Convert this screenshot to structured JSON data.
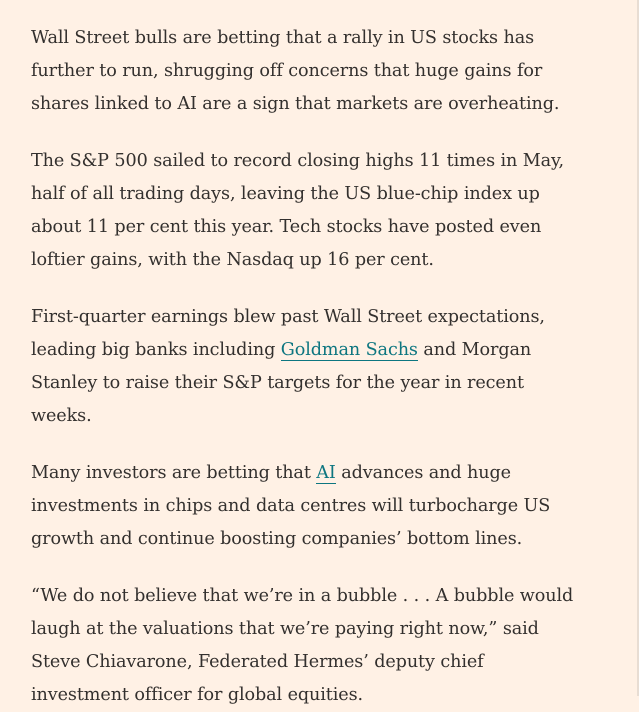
{
  "article": {
    "paragraphs": [
      {
        "lines": [
          "Wall Street bulls are betting that a rally in US stocks has",
          "further to run, shrugging off concerns that huge gains for",
          "shares linked to AI are a sign that markets are overheating."
        ]
      },
      {
        "lines": [
          "The S&P 500 sailed to record closing highs 11 times in May,",
          "half of all trading days, leaving the US blue-chip index up",
          "about 11 per cent this year. Tech stocks have posted even",
          "loftier gains, with the Nasdaq up 16 per cent."
        ]
      },
      {
        "line1": "First-quarter earnings blew past Wall Street expectations,",
        "line2_before": "leading big banks including ",
        "link_goldman": "Goldman Sachs",
        "line2_after": " and Morgan",
        "line3": "Stanley to raise their S&P targets for the year in recent",
        "line4": "weeks."
      },
      {
        "line1_before": "Many investors are betting that ",
        "link_ai": "AI",
        "line1_after": " advances and huge",
        "line2": "investments in chips and data centres will turbocharge US",
        "line3": "growth and continue boosting companies’ bottom lines."
      },
      {
        "lines": [
          "“We do not believe that we’re in a bubble . . . A bubble would",
          "laugh at the valuations that we’re paying right now,” said",
          "Steve Chiavarone, Federated Hermes’ deputy chief",
          "investment officer for global equities."
        ]
      }
    ]
  },
  "colors": {
    "background": "#fff1e5",
    "text": "#33302e",
    "link": "#0d7680"
  }
}
